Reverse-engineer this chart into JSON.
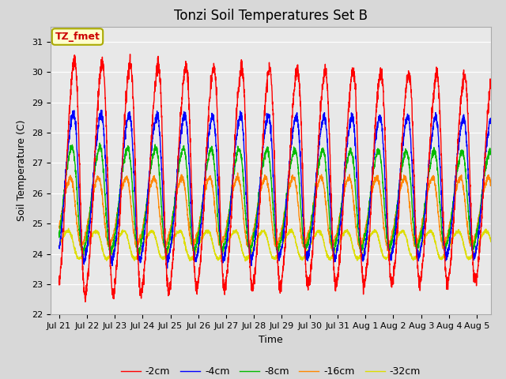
{
  "title": "Tonzi Soil Temperatures Set B",
  "ylabel": "Soil Temperature (C)",
  "xlabel": "Time",
  "annotation": "TZ_fmet",
  "ylim": [
    22.0,
    31.5
  ],
  "xlim_days": 15.5,
  "x_tick_labels": [
    "Jul 21",
    "Jul 22",
    "Jul 23",
    "Jul 24",
    "Jul 25",
    "Jul 26",
    "Jul 27",
    "Jul 28",
    "Jul 29",
    "Jul 30",
    "Jul 31",
    "Aug 1",
    "Aug 2",
    "Aug 3",
    "Aug 4",
    "Aug 5"
  ],
  "colors": {
    "-2cm": "#FF0000",
    "-4cm": "#0000FF",
    "-8cm": "#00BB00",
    "-16cm": "#FF8800",
    "-32cm": "#DDDD00"
  },
  "legend_labels": [
    "-2cm",
    "-4cm",
    "-8cm",
    "-16cm",
    "-32cm"
  ],
  "linewidth": 1.0,
  "n_points": 3000,
  "title_fontsize": 12,
  "axis_fontsize": 9,
  "tick_fontsize": 8
}
